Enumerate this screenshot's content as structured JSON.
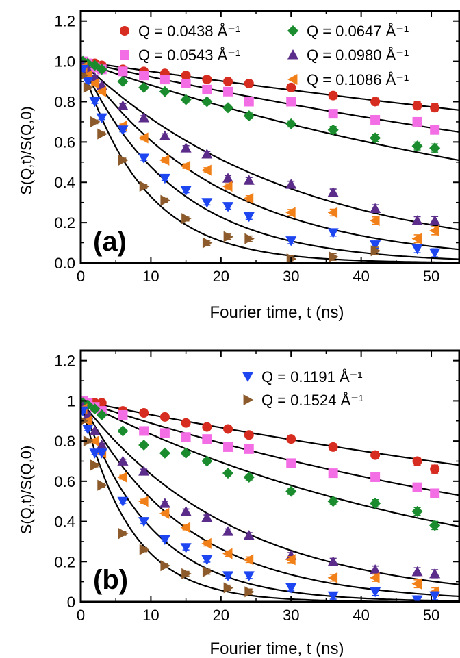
{
  "chart_data": [
    {
      "type": "scatter",
      "panel_label": "(a)",
      "xlabel": "Fourier time, t (ns)",
      "ylabel": "S(Q,t)/S(Q,0)",
      "xlim": [
        0,
        54
      ],
      "ylim": [
        0,
        1.25
      ],
      "x_ticks": [
        "0",
        "10",
        "20",
        "30",
        "40",
        "50"
      ],
      "y_ticks": [
        "0.0",
        "0.2",
        "0.4",
        "0.6",
        "0.8",
        "1.0",
        "1.2"
      ],
      "legend_position": "top",
      "series": [
        {
          "name": "Q = 0.0438 Å⁻¹",
          "marker": "circle",
          "color": "#d62d20",
          "tau": 195,
          "x": [
            0.3,
            1,
            2,
            3,
            6,
            9,
            12,
            15,
            18,
            21,
            24,
            30,
            36,
            42,
            48,
            50.5
          ],
          "y": [
            1.0,
            0.99,
            0.99,
            0.98,
            0.96,
            0.95,
            0.94,
            0.93,
            0.91,
            0.9,
            0.89,
            0.87,
            0.83,
            0.8,
            0.78,
            0.77
          ]
        },
        {
          "name": "Q = 0.0543 Å⁻¹",
          "marker": "square",
          "color": "#f36ee5",
          "tau": 125,
          "x": [
            0.3,
            1,
            2,
            3,
            6,
            9,
            12,
            15,
            18,
            21,
            24,
            30,
            36,
            42,
            48,
            50.5
          ],
          "y": [
            1.0,
            0.99,
            0.97,
            0.96,
            0.95,
            0.93,
            0.91,
            0.89,
            0.86,
            0.85,
            0.8,
            0.8,
            0.74,
            0.71,
            0.7,
            0.66
          ]
        },
        {
          "name": "Q = 0.0647 Å⁻¹",
          "marker": "diamond",
          "color": "#1a8c2e",
          "tau": 80,
          "x": [
            0.3,
            1,
            2,
            3,
            6,
            9,
            12,
            15,
            18,
            21,
            24,
            30,
            36,
            42,
            48,
            50.5
          ],
          "y": [
            1.0,
            0.99,
            0.98,
            0.96,
            0.9,
            0.87,
            0.85,
            0.81,
            0.8,
            0.77,
            0.73,
            0.69,
            0.66,
            0.62,
            0.58,
            0.57
          ]
        },
        {
          "name": "Q = 0.0980 Å⁻¹",
          "marker": "triangle-up",
          "color": "#5b2c8a",
          "tau": 30,
          "x": [
            0.3,
            1,
            2,
            3,
            6,
            9,
            12,
            15,
            18,
            21,
            24,
            30,
            36,
            42,
            48,
            50.5
          ],
          "y": [
            0.98,
            0.96,
            0.92,
            0.88,
            0.78,
            0.72,
            0.63,
            0.57,
            0.54,
            0.42,
            0.41,
            0.39,
            0.35,
            0.27,
            0.21,
            0.21
          ]
        },
        {
          "name": "Q = 0.1086 Å⁻¹",
          "marker": "triangle-left",
          "color": "#f28018",
          "tau": 20,
          "x": [
            0.3,
            1,
            2,
            3,
            6,
            9,
            12,
            15,
            18,
            21,
            24,
            30,
            36,
            42,
            48,
            50.5
          ],
          "y": [
            0.97,
            0.93,
            0.89,
            0.85,
            0.68,
            0.62,
            0.51,
            0.48,
            0.46,
            0.38,
            0.32,
            0.25,
            0.25,
            0.21,
            0.12,
            0.16
          ]
        },
        {
          "name": "Q = 0.1191 Å⁻¹",
          "marker": "triangle-down",
          "color": "#1e46f0",
          "tau": 13.5,
          "x": [
            0.3,
            1,
            2,
            3,
            6,
            9,
            12,
            15,
            18,
            21,
            24,
            30,
            36,
            42,
            48,
            50.5
          ],
          "y": [
            0.96,
            0.9,
            0.8,
            0.72,
            0.66,
            0.52,
            0.42,
            0.36,
            0.3,
            0.28,
            0.23,
            0.11,
            0.15,
            0.09,
            0.07,
            0.05
          ]
        },
        {
          "name": "Q = 0.1524 Å⁻¹",
          "marker": "triangle-right",
          "color": "#8c5a2b",
          "tau": 9,
          "x": [
            0.3,
            1,
            2,
            3,
            6,
            9,
            12,
            15,
            18,
            21,
            24,
            30,
            36,
            42
          ],
          "y": [
            0.93,
            0.87,
            0.7,
            0.64,
            0.51,
            0.38,
            0.31,
            0.22,
            0.1,
            0.13,
            0.12,
            0.02,
            0.03,
            0.06
          ]
        }
      ]
    },
    {
      "type": "scatter",
      "panel_label": "(b)",
      "xlabel": "Fourier time, t (ns)",
      "ylabel": "S(Q,t)/S(Q,0)",
      "xlim": [
        0,
        54
      ],
      "ylim": [
        0,
        1.25
      ],
      "x_ticks": [
        "0",
        "10",
        "20",
        "30",
        "40",
        "50"
      ],
      "y_ticks": [
        "0",
        "0.2",
        "0.4",
        "0.6",
        "0.8",
        "1",
        "1.2"
      ],
      "legend_position": "top-right",
      "series": [
        {
          "name": "Q = 0.0438 Å⁻¹",
          "marker": "circle",
          "color": "#d62d20",
          "tau": 140,
          "x": [
            0.3,
            1,
            2,
            3,
            6,
            9,
            12,
            15,
            18,
            21,
            24,
            30,
            36,
            42,
            48,
            50.5
          ],
          "y": [
            1.0,
            0.99,
            0.99,
            0.99,
            0.95,
            0.94,
            0.92,
            0.89,
            0.87,
            0.86,
            0.83,
            0.81,
            0.77,
            0.73,
            0.7,
            0.66
          ]
        },
        {
          "name": "Q = 0.0543 Å⁻¹",
          "marker": "square",
          "color": "#f36ee5",
          "tau": 85,
          "x": [
            0.3,
            1,
            2,
            3,
            6,
            9,
            12,
            15,
            18,
            21,
            24,
            30,
            36,
            42,
            48,
            50.5
          ],
          "y": [
            1.0,
            0.99,
            0.97,
            0.95,
            0.93,
            0.85,
            0.84,
            0.82,
            0.81,
            0.77,
            0.76,
            0.69,
            0.64,
            0.62,
            0.57,
            0.54
          ]
        },
        {
          "name": "Q = 0.0647 Å⁻¹",
          "marker": "diamond",
          "color": "#1a8c2e",
          "tau": 55,
          "x": [
            0.3,
            1,
            2,
            3,
            6,
            9,
            12,
            15,
            18,
            21,
            24,
            30,
            36,
            42,
            48,
            50.5
          ],
          "y": [
            0.99,
            0.98,
            0.96,
            0.93,
            0.85,
            0.78,
            0.74,
            0.74,
            0.7,
            0.64,
            0.62,
            0.55,
            0.5,
            0.49,
            0.45,
            0.38
          ]
        },
        {
          "name": "Q = 0.0980 Å⁻¹",
          "marker": "triangle-up",
          "color": "#5b2c8a",
          "tau": 22,
          "x": [
            0.3,
            1,
            2,
            3,
            6,
            9,
            12,
            15,
            18,
            21,
            24,
            30,
            36,
            42,
            48,
            50.5
          ],
          "y": [
            0.97,
            0.93,
            0.85,
            0.78,
            0.7,
            0.65,
            0.49,
            0.45,
            0.42,
            0.35,
            0.33,
            0.23,
            0.2,
            0.16,
            0.15,
            0.14
          ]
        },
        {
          "name": "Q = 0.1086 Å⁻¹",
          "marker": "triangle-left",
          "color": "#f28018",
          "tau": 15,
          "x": [
            0.3,
            1,
            2,
            3,
            6,
            9,
            12,
            15,
            18,
            21,
            24,
            30,
            36,
            42,
            48,
            50.5
          ],
          "y": [
            0.96,
            0.9,
            0.8,
            0.74,
            0.62,
            0.5,
            0.44,
            0.37,
            0.29,
            0.24,
            0.21,
            0.21,
            0.12,
            0.12,
            0.09,
            0.05
          ]
        },
        {
          "name": "Q = 0.1191 Å⁻¹",
          "marker": "triangle-down",
          "color": "#1e46f0",
          "tau": 10,
          "x": [
            0.3,
            1,
            2,
            3,
            6,
            9,
            12,
            15,
            18,
            21,
            24,
            30,
            36,
            42,
            48,
            50.5
          ],
          "y": [
            0.95,
            0.86,
            0.74,
            0.74,
            0.5,
            0.4,
            0.31,
            0.27,
            0.21,
            0.13,
            0.13,
            0.07,
            0.03,
            0.05,
            0.01,
            0.03
          ]
        },
        {
          "name": "Q = 0.1524 Å⁻¹",
          "marker": "triangle-right",
          "color": "#8c5a2b",
          "tau": 7,
          "x": [
            0.3,
            1,
            2,
            3,
            6,
            9,
            12,
            15,
            18,
            21,
            24
          ],
          "y": [
            0.9,
            0.8,
            0.68,
            0.58,
            0.34,
            0.26,
            0.18,
            0.14,
            0.15,
            0.07,
            0.05
          ]
        }
      ]
    }
  ],
  "legends": {
    "a": [
      {
        "marker": "circle",
        "color": "#d62d20",
        "label": "Q = 0.0438 Å⁻¹"
      },
      {
        "marker": "diamond",
        "color": "#1a8c2e",
        "label": "Q = 0.0647 Å⁻¹"
      },
      {
        "marker": "square",
        "color": "#f36ee5",
        "label": "Q = 0.0543 Å⁻¹"
      },
      {
        "marker": "triangle-up",
        "color": "#5b2c8a",
        "label": "Q = 0.0980 Å⁻¹"
      },
      {
        "marker": "triangle-left",
        "color": "#f28018",
        "label": "Q = 0.1086 Å⁻¹"
      }
    ],
    "b": [
      {
        "marker": "triangle-down",
        "color": "#1e46f0",
        "label": "Q = 0.1191 Å⁻¹"
      },
      {
        "marker": "triangle-right",
        "color": "#8c5a2b",
        "label": "Q = 0.1524 Å⁻¹"
      }
    ]
  }
}
